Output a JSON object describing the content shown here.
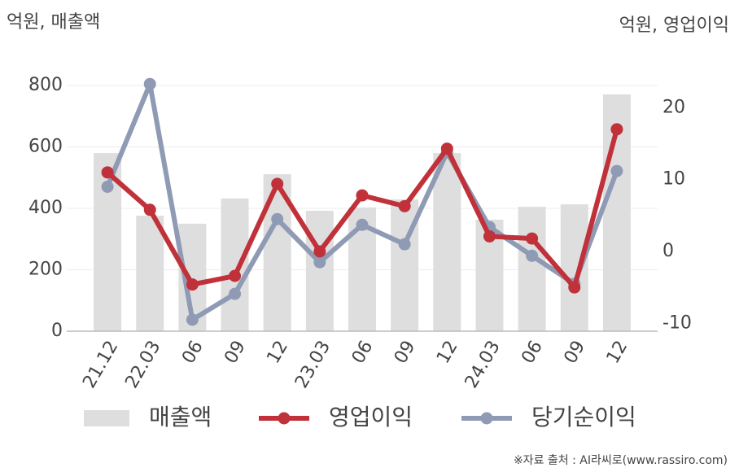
{
  "chart_data": {
    "type": "bar-line",
    "y_axis_label": "억원, 매출액",
    "y2_axis_label": "억원, 영업이익",
    "source": "※자료 출처 : AI라씨로(www.rassiro.com)",
    "categories": [
      "21.12",
      "22.03",
      "06",
      "09",
      "12",
      "23.03",
      "06",
      "09",
      "12",
      "24.03",
      "06",
      "09",
      "12"
    ],
    "series": [
      {
        "name": "매출액",
        "type": "bar",
        "color": "#dedede",
        "values": [
          580,
          376,
          350,
          432,
          511,
          392,
          403,
          429,
          580,
          363,
          405,
          413,
          771
        ]
      },
      {
        "name": "영업이익",
        "type": "line",
        "axis": "y2",
        "color": "#c0313a",
        "values": [
          11.0,
          5.8,
          -4.6,
          -3.4,
          9.4,
          0,
          7.8,
          6.3,
          14.3,
          2.1,
          1.8,
          -5.0,
          17.0
        ]
      },
      {
        "name": "당기순이익",
        "type": "line",
        "axis": "y2",
        "color": "#8f9bb5",
        "values": [
          9.0,
          23.3,
          -9.5,
          -5.9,
          4.5,
          -1.5,
          3.7,
          1.0,
          13.8,
          3.4,
          -0.6,
          -4.5,
          11.2
        ]
      }
    ],
    "ylim": [
      0,
      800
    ],
    "yticks": [
      0,
      200,
      400,
      600,
      800
    ],
    "y2lim": [
      -11.1,
      23.1
    ],
    "y2ticks": [
      -10,
      0,
      10,
      20
    ],
    "grid": true
  }
}
